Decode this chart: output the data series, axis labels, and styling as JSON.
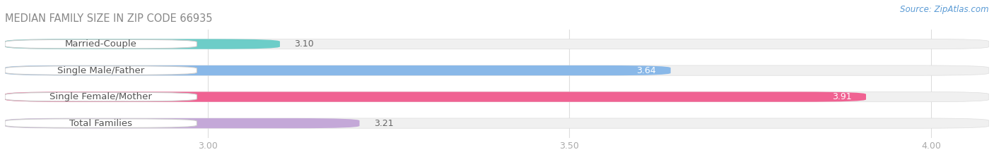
{
  "title": "MEDIAN FAMILY SIZE IN ZIP CODE 66935",
  "source": "Source: ZipAtlas.com",
  "categories": [
    "Married-Couple",
    "Single Male/Father",
    "Single Female/Mother",
    "Total Families"
  ],
  "values": [
    3.1,
    3.64,
    3.91,
    3.21
  ],
  "bar_colors": [
    "#6dcdc8",
    "#89b8e8",
    "#f06292",
    "#c4a8d8"
  ],
  "xlim_min": 2.72,
  "xlim_max": 4.08,
  "xticks": [
    3.0,
    3.5,
    4.0
  ],
  "label_inside": [
    false,
    true,
    true,
    false
  ],
  "fig_width": 14.06,
  "fig_height": 2.33,
  "dpi": 100,
  "bar_height": 0.38,
  "bar_gap": 0.62,
  "background_color": "#ffffff",
  "grid_color": "#dddddd",
  "title_color": "#888888",
  "tick_color": "#aaaaaa",
  "label_fontsize": 9.5,
  "title_fontsize": 10.5,
  "source_fontsize": 8.5,
  "tick_fontsize": 9,
  "value_fontsize": 9
}
